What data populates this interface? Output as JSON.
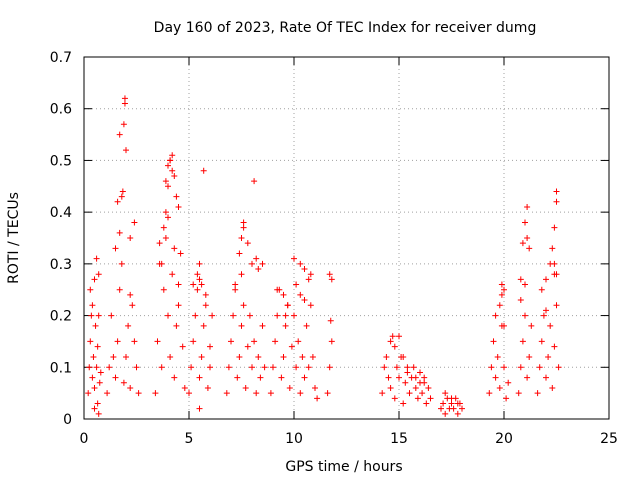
{
  "chart_data": {
    "type": "scatter",
    "title": "Day 160 of 2023, Rate Of TEC Index for receiver dumg",
    "xlabel": "GPS time / hours",
    "ylabel": "ROTI / TECUs",
    "xlim": [
      0,
      25
    ],
    "ylim": [
      0,
      0.7
    ],
    "x_ticks": [
      "0",
      "5",
      "10",
      "15",
      "20",
      "25"
    ],
    "y_ticks": [
      "0",
      "0.1",
      "0.2",
      "0.3",
      "0.4",
      "0.5",
      "0.6",
      "0.7"
    ],
    "x_tick_values": [
      0,
      5,
      10,
      15,
      20,
      25
    ],
    "y_tick_values": [
      0,
      0.1,
      0.2,
      0.3,
      0.4,
      0.5,
      0.6,
      0.7
    ],
    "grid": true,
    "marker": "plus",
    "color": "#ff0000",
    "series": [
      {
        "x": [
          0.2,
          0.25,
          0.3,
          0.35,
          0.4,
          0.45,
          0.5,
          0.55,
          0.6,
          0.65,
          0.7,
          0.75,
          0.8,
          0.3,
          0.4,
          0.5,
          0.6,
          0.7,
          0.5,
          0.65,
          0.7,
          1.1,
          1.2,
          1.3,
          1.4,
          1.5,
          1.6,
          1.7,
          1.8,
          1.9,
          2.0,
          2.1,
          2.2,
          2.3,
          2.4,
          2.5,
          2.6,
          1.5,
          1.7,
          1.8,
          1.85,
          1.9,
          1.95,
          1.95,
          2.0,
          2.2,
          2.4,
          1.6,
          1.7,
          2.2,
          3.4,
          3.5,
          3.6,
          3.7,
          3.8,
          3.9,
          4.0,
          4.1,
          4.2,
          4.3,
          4.4,
          4.5,
          4.6,
          4.7,
          4.8,
          3.6,
          3.8,
          3.9,
          4.0,
          4.1,
          4.2,
          4.3,
          4.4,
          4.5,
          3.9,
          4.0,
          4.1,
          4.2,
          3.7,
          4.0,
          4.3,
          4.5,
          5.0,
          5.1,
          5.2,
          5.3,
          5.4,
          5.5,
          5.6,
          5.7,
          5.8,
          5.9,
          6.0,
          6.1,
          5.2,
          5.5,
          5.8,
          6.0,
          5.4,
          5.5,
          5.6,
          5.7,
          5.5,
          6.8,
          6.9,
          7.0,
          7.1,
          7.2,
          7.3,
          7.4,
          7.5,
          7.6,
          7.7,
          7.8,
          7.9,
          8.0,
          8.1,
          8.2,
          8.3,
          8.4,
          8.5,
          8.6,
          7.2,
          7.5,
          7.6,
          7.8,
          8.0,
          8.3,
          7.4,
          7.5,
          7.6,
          8.1,
          8.2,
          8.5,
          8.9,
          9.0,
          9.1,
          9.2,
          9.3,
          9.4,
          9.5,
          9.6,
          9.7,
          9.8,
          9.9,
          10.0,
          10.1,
          10.2,
          10.3,
          10.4,
          10.5,
          10.6,
          10.7,
          10.8,
          10.9,
          11.0,
          11.1,
          9.2,
          9.5,
          9.7,
          10.0,
          10.3,
          10.5,
          10.8,
          10.1,
          10.3,
          10.5,
          10.7,
          9.6,
          11.6,
          11.7,
          11.8,
          11.7,
          11.8,
          11.75,
          14.2,
          14.3,
          14.4,
          14.5,
          14.6,
          14.7,
          14.8,
          14.9,
          15.0,
          15.1,
          15.2,
          15.3,
          15.4,
          15.5,
          15.6,
          15.7,
          15.8,
          15.9,
          16.0,
          16.1,
          16.2,
          16.3,
          16.4,
          16.5,
          14.6,
          14.8,
          15.0,
          15.2,
          15.4,
          15.8,
          16.0,
          16.2,
          17.0,
          17.1,
          17.2,
          17.3,
          17.4,
          17.5,
          17.6,
          17.7,
          17.8,
          17.9,
          18.0,
          17.2,
          17.5,
          17.8,
          19.3,
          19.4,
          19.5,
          19.6,
          19.7,
          19.8,
          19.9,
          20.0,
          20.1,
          20.2,
          19.6,
          19.8,
          19.9,
          20.0,
          19.9,
          20.0,
          20.7,
          20.8,
          20.9,
          21.0,
          21.1,
          21.2,
          21.3,
          20.8,
          20.9,
          21.0,
          21.1,
          21.1,
          21.2,
          20.8,
          21.0,
          21.6,
          21.7,
          21.8,
          21.9,
          22.0,
          22.1,
          22.2,
          22.3,
          22.4,
          22.5,
          22.6,
          21.8,
          22.0,
          22.2,
          22.4,
          22.3,
          22.4,
          22.5,
          22.5,
          22.4,
          22.5,
          22.0
        ]
      },
      {
        "y": [
          0.05,
          0.1,
          0.15,
          0.2,
          0.08,
          0.12,
          0.06,
          0.18,
          0.1,
          0.14,
          0.2,
          0.07,
          0.09,
          0.25,
          0.22,
          0.27,
          0.31,
          0.28,
          0.02,
          0.03,
          0.01,
          0.05,
          0.1,
          0.2,
          0.12,
          0.08,
          0.15,
          0.25,
          0.3,
          0.07,
          0.12,
          0.18,
          0.06,
          0.22,
          0.15,
          0.1,
          0.05,
          0.33,
          0.36,
          0.43,
          0.44,
          0.57,
          0.61,
          0.62,
          0.52,
          0.35,
          0.38,
          0.42,
          0.55,
          0.24,
          0.05,
          0.15,
          0.3,
          0.1,
          0.25,
          0.35,
          0.2,
          0.12,
          0.28,
          0.08,
          0.18,
          0.22,
          0.32,
          0.14,
          0.06,
          0.34,
          0.37,
          0.4,
          0.45,
          0.5,
          0.51,
          0.47,
          0.43,
          0.41,
          0.46,
          0.49,
          0.5,
          0.48,
          0.3,
          0.39,
          0.33,
          0.26,
          0.05,
          0.1,
          0.15,
          0.2,
          0.25,
          0.08,
          0.12,
          0.18,
          0.22,
          0.06,
          0.14,
          0.2,
          0.26,
          0.3,
          0.24,
          0.1,
          0.28,
          0.27,
          0.26,
          0.48,
          0.02,
          0.05,
          0.1,
          0.15,
          0.2,
          0.25,
          0.08,
          0.12,
          0.18,
          0.22,
          0.06,
          0.14,
          0.2,
          0.1,
          0.15,
          0.05,
          0.12,
          0.08,
          0.18,
          0.1,
          0.26,
          0.28,
          0.37,
          0.34,
          0.3,
          0.29,
          0.32,
          0.35,
          0.38,
          0.46,
          0.31,
          0.3,
          0.05,
          0.1,
          0.15,
          0.2,
          0.25,
          0.08,
          0.12,
          0.18,
          0.22,
          0.06,
          0.14,
          0.2,
          0.1,
          0.15,
          0.05,
          0.12,
          0.08,
          0.18,
          0.1,
          0.22,
          0.12,
          0.06,
          0.04,
          0.25,
          0.24,
          0.22,
          0.31,
          0.3,
          0.29,
          0.28,
          0.26,
          0.24,
          0.23,
          0.27,
          0.2,
          0.05,
          0.1,
          0.15,
          0.28,
          0.27,
          0.19,
          0.05,
          0.1,
          0.12,
          0.08,
          0.06,
          0.16,
          0.04,
          0.1,
          0.08,
          0.12,
          0.03,
          0.07,
          0.09,
          0.05,
          0.08,
          0.1,
          0.06,
          0.04,
          0.07,
          0.05,
          0.08,
          0.03,
          0.06,
          0.04,
          0.15,
          0.14,
          0.16,
          0.12,
          0.1,
          0.08,
          0.09,
          0.07,
          0.02,
          0.03,
          0.01,
          0.04,
          0.02,
          0.03,
          0.02,
          0.04,
          0.01,
          0.03,
          0.02,
          0.05,
          0.04,
          0.03,
          0.05,
          0.1,
          0.15,
          0.08,
          0.12,
          0.06,
          0.18,
          0.1,
          0.04,
          0.07,
          0.2,
          0.22,
          0.26,
          0.25,
          0.24,
          0.18,
          0.05,
          0.1,
          0.15,
          0.2,
          0.08,
          0.12,
          0.18,
          0.27,
          0.34,
          0.38,
          0.41,
          0.35,
          0.33,
          0.23,
          0.26,
          0.05,
          0.1,
          0.15,
          0.2,
          0.08,
          0.12,
          0.18,
          0.06,
          0.14,
          0.22,
          0.1,
          0.25,
          0.27,
          0.3,
          0.28,
          0.33,
          0.37,
          0.44,
          0.42,
          0.3,
          0.28,
          0.21
        ]
      }
    ]
  }
}
